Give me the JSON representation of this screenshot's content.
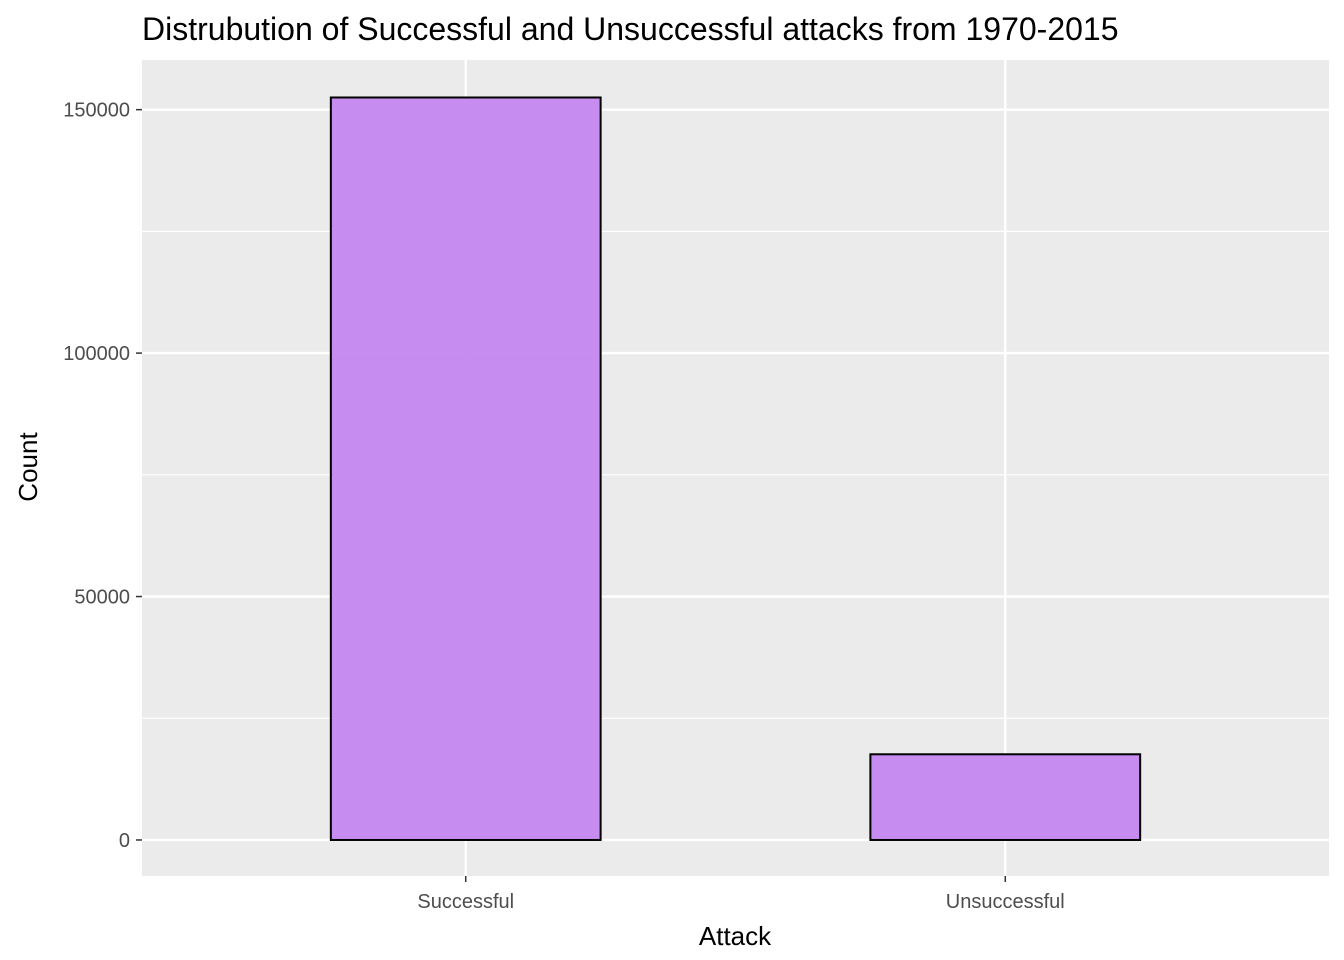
{
  "chart_data": {
    "type": "bar",
    "title": "Distrubution of Successful and Unsuccessful attacks from 1970-2015",
    "xlabel": "Attack",
    "ylabel": "Count",
    "categories": [
      "Successful",
      "Unsuccessful"
    ],
    "values": [
      152500,
      17600
    ],
    "ylim": [
      -7400,
      160200
    ],
    "yticks": [
      0,
      50000,
      100000,
      150000
    ],
    "ytick_labels": [
      "0",
      "50000",
      "100000",
      "150000"
    ],
    "grid": true,
    "legend": "none",
    "colors": {
      "panel_background": "#ebebeb",
      "grid": "#ffffff",
      "bar_fill": "#c383ef",
      "bar_outline": "#000000",
      "tick_text": "#4d4d4d"
    }
  }
}
